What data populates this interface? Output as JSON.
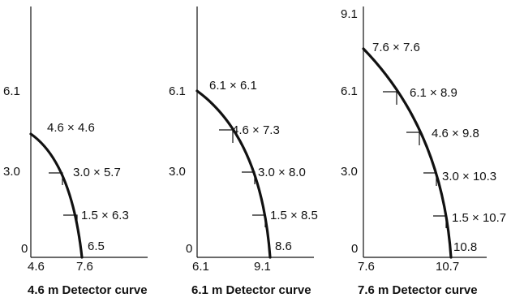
{
  "panels": [
    {
      "caption": "4.6 m Detector curve",
      "y_ticks": [
        "6.1",
        "3.0",
        "0"
      ],
      "x_ticks": [
        "4.6",
        "7.6"
      ],
      "annotations": [
        "4.6 × 4.6",
        "3.0 × 5.7",
        "1.5 × 6.3",
        "6.5"
      ]
    },
    {
      "caption": "6.1 m Detector curve",
      "y_ticks": [
        "6.1",
        "3.0",
        "0"
      ],
      "x_ticks": [
        "6.1",
        "9.1"
      ],
      "annotations": [
        "6.1 × 6.1",
        "4.6 × 7.3",
        "3.0 × 8.0",
        "1.5 × 8.5",
        "8.6"
      ]
    },
    {
      "caption": "7.6 m Detector curve",
      "y_ticks": [
        "9.1",
        "6.1",
        "3.0",
        "0"
      ],
      "x_ticks": [
        "7.6",
        "10.7"
      ],
      "annotations": [
        "7.6 × 7.6",
        "6.1 × 8.9",
        "4.6 × 9.8",
        "3.0 × 10.3",
        "1.5 × 10.7",
        "10.8"
      ]
    }
  ]
}
